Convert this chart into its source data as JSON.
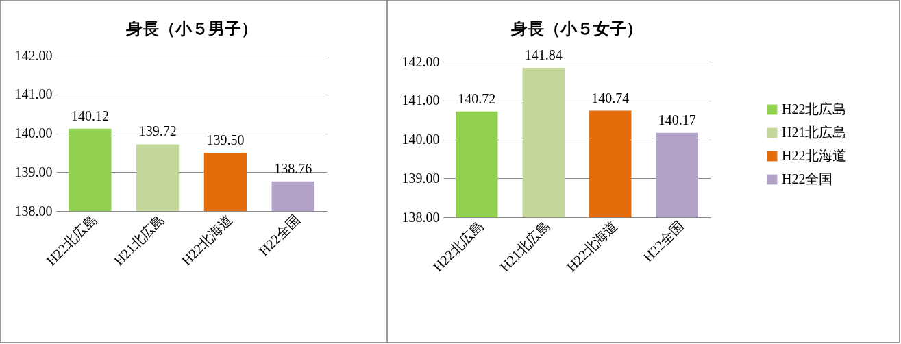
{
  "chart_data": [
    {
      "type": "bar",
      "title": "身長（小５男子）",
      "categories": [
        "H22北広島",
        "H21北広島",
        "H22北海道",
        "H22全国"
      ],
      "values": [
        140.12,
        139.72,
        139.5,
        138.76
      ],
      "colors": [
        "#92d050",
        "#c4d79b",
        "#e46c0a",
        "#b3a2c7"
      ],
      "value_labels": [
        "140.12",
        "139.72",
        "139.50",
        "138.76"
      ],
      "ylim": [
        138,
        142
      ],
      "yticks": [
        {
          "value": 138,
          "label": "138.00"
        },
        {
          "value": 139,
          "label": "139.00"
        },
        {
          "value": 140,
          "label": "140.00"
        },
        {
          "value": 141,
          "label": "141.00"
        },
        {
          "value": 142,
          "label": "142.00"
        }
      ],
      "grid": "y"
    },
    {
      "type": "bar",
      "title": "身長（小５女子）",
      "categories": [
        "H22北広島",
        "H21北広島",
        "H22北海道",
        "H22全国"
      ],
      "series": [
        {
          "name": "H22北広島",
          "color": "#92d050",
          "values": [
            140.72,
            null,
            null,
            null
          ],
          "value_labels": [
            "140.72",
            null,
            null,
            null
          ]
        },
        {
          "name": "H21北広島",
          "color": "#c4d79b",
          "values": [
            null,
            141.84,
            null,
            null
          ],
          "value_labels": [
            null,
            "141.84",
            null,
            null
          ]
        },
        {
          "name": "H22北海道",
          "color": "#e46c0a",
          "values": [
            null,
            null,
            140.74,
            null
          ],
          "value_labels": [
            null,
            null,
            "140.74",
            null
          ]
        },
        {
          "name": "H22全国",
          "color": "#b3a2c7",
          "values": [
            null,
            null,
            null,
            140.17
          ],
          "value_labels": [
            null,
            null,
            null,
            "140.17"
          ]
        }
      ],
      "ylim": [
        138,
        142
      ],
      "yticks": [
        {
          "value": 138,
          "label": "138.00"
        },
        {
          "value": 139,
          "label": "139.00"
        },
        {
          "value": 140,
          "label": "140.00"
        },
        {
          "value": 141,
          "label": "141.00"
        },
        {
          "value": 142,
          "label": "142.00"
        }
      ],
      "grid": "y",
      "legend": "right"
    }
  ]
}
